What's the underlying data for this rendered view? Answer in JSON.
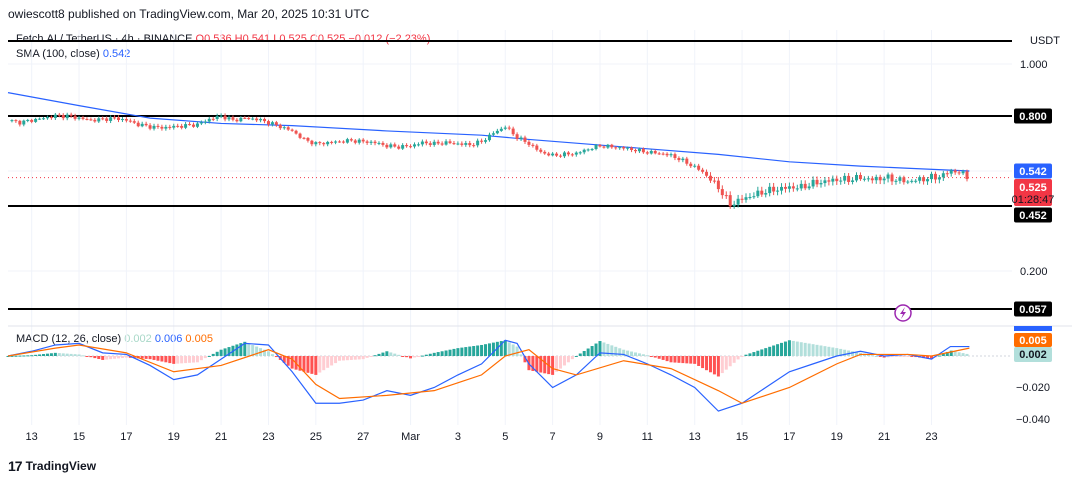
{
  "header": {
    "publisher": "owiescott8 published on TradingView.com, Mar 20, 2025 10:31 UTC",
    "symbol": "Fetch.AI / TetherUS · 4h · BINANCE",
    "ohlc": "O0.536 H0.541 L0.525 C0.525 −0.012 (−2.23%)"
  },
  "sma_legend": {
    "label": "SMA (100, close)",
    "value": "0.542"
  },
  "macd_legend": {
    "label": "MACD (12, 26, close)",
    "hist": "0.002",
    "macd": "0.006",
    "signal": "0.005"
  },
  "footer": {
    "logo": "17",
    "brand": "TradingView"
  },
  "colors": {
    "up": "#26a69a",
    "down": "#ef5350",
    "sma": "#2962ff",
    "macd": "#2962ff",
    "signal": "#ff6d00",
    "level": "#000000"
  },
  "chart_data": [
    {
      "type": "candlestick",
      "title": "Fetch.AI / TetherUS · 4h · BINANCE",
      "currency": "USDT",
      "y_ticks": [
        "1.000",
        "0.200"
      ],
      "x_ticks": [
        "13",
        "15",
        "17",
        "19",
        "21",
        "23",
        "25",
        "27",
        "Mar",
        "3",
        "5",
        "7",
        "9",
        "11",
        "13",
        "15",
        "17",
        "19",
        "21",
        "23"
      ],
      "horizontal_levels": [
        1.04,
        0.8,
        0.452,
        0.057
      ],
      "price_labels": {
        "sma": "0.542",
        "last": "0.525",
        "countdown": "01:28:47",
        "levels": [
          "0.800",
          "0.452",
          "0.057"
        ]
      },
      "close_path": [
        {
          "day": 12.0,
          "close": 0.78
        },
        {
          "day": 12.5,
          "close": 0.77
        },
        {
          "day": 13.0,
          "close": 0.78
        },
        {
          "day": 13.5,
          "close": 0.79
        },
        {
          "day": 14.0,
          "close": 0.8
        },
        {
          "day": 14.5,
          "close": 0.8
        },
        {
          "day": 15.0,
          "close": 0.79
        },
        {
          "day": 15.5,
          "close": 0.78
        },
        {
          "day": 16.0,
          "close": 0.785
        },
        {
          "day": 16.5,
          "close": 0.79
        },
        {
          "day": 17.0,
          "close": 0.78
        },
        {
          "day": 17.5,
          "close": 0.76
        },
        {
          "day": 18.0,
          "close": 0.75
        },
        {
          "day": 18.5,
          "close": 0.745
        },
        {
          "day": 19.0,
          "close": 0.75
        },
        {
          "day": 19.5,
          "close": 0.755
        },
        {
          "day": 20.0,
          "close": 0.76
        },
        {
          "day": 20.5,
          "close": 0.785
        },
        {
          "day": 21.0,
          "close": 0.8
        },
        {
          "day": 21.5,
          "close": 0.78
        },
        {
          "day": 22.0,
          "close": 0.79
        },
        {
          "day": 22.5,
          "close": 0.785
        },
        {
          "day": 23.0,
          "close": 0.77
        },
        {
          "day": 23.5,
          "close": 0.75
        },
        {
          "day": 24.0,
          "close": 0.73
        },
        {
          "day": 24.5,
          "close": 0.69
        },
        {
          "day": 25.0,
          "close": 0.67
        },
        {
          "day": 25.5,
          "close": 0.675
        },
        {
          "day": 26.0,
          "close": 0.68
        },
        {
          "day": 26.5,
          "close": 0.685
        },
        {
          "day": 27.0,
          "close": 0.68
        },
        {
          "day": 27.5,
          "close": 0.675
        },
        {
          "day": 28.0,
          "close": 0.66
        },
        {
          "day": 28.5,
          "close": 0.655
        },
        {
          "day": 29.0,
          "close": 0.66
        },
        {
          "day": 29.5,
          "close": 0.675
        },
        {
          "day": 30.0,
          "close": 0.67
        },
        {
          "day": 30.5,
          "close": 0.675
        },
        {
          "day": 31.0,
          "close": 0.67
        },
        {
          "day": 31.5,
          "close": 0.665
        },
        {
          "day": 32.0,
          "close": 0.68
        },
        {
          "day": 32.5,
          "close": 0.72
        },
        {
          "day": 33.0,
          "close": 0.75
        },
        {
          "day": 33.5,
          "close": 0.7
        },
        {
          "day": 34.0,
          "close": 0.67
        },
        {
          "day": 34.5,
          "close": 0.63
        },
        {
          "day": 35.0,
          "close": 0.615
        },
        {
          "day": 35.5,
          "close": 0.62
        },
        {
          "day": 36.0,
          "close": 0.625
        },
        {
          "day": 36.5,
          "close": 0.645
        },
        {
          "day": 37.0,
          "close": 0.66
        },
        {
          "day": 37.5,
          "close": 0.655
        },
        {
          "day": 38.0,
          "close": 0.65
        },
        {
          "day": 38.5,
          "close": 0.64
        },
        {
          "day": 39.0,
          "close": 0.63
        },
        {
          "day": 39.5,
          "close": 0.625
        },
        {
          "day": 40.0,
          "close": 0.615
        },
        {
          "day": 40.5,
          "close": 0.59
        },
        {
          "day": 41.0,
          "close": 0.56
        },
        {
          "day": 41.5,
          "close": 0.53
        },
        {
          "day": 42.0,
          "close": 0.5
        },
        {
          "day": 42.5,
          "close": 0.455
        },
        {
          "day": 43.0,
          "close": 0.47
        },
        {
          "day": 43.5,
          "close": 0.48
        },
        {
          "day": 44.0,
          "close": 0.49
        },
        {
          "day": 44.5,
          "close": 0.495
        },
        {
          "day": 45.0,
          "close": 0.5
        },
        {
          "day": 45.5,
          "close": 0.5
        },
        {
          "day": 46.0,
          "close": 0.51
        },
        {
          "day": 46.5,
          "close": 0.515
        },
        {
          "day": 47.0,
          "close": 0.52
        },
        {
          "day": 47.5,
          "close": 0.52
        },
        {
          "day": 48.0,
          "close": 0.525
        },
        {
          "day": 48.5,
          "close": 0.52
        },
        {
          "day": 49.0,
          "close": 0.525
        },
        {
          "day": 49.5,
          "close": 0.52
        },
        {
          "day": 50.0,
          "close": 0.515
        },
        {
          "day": 50.5,
          "close": 0.52
        },
        {
          "day": 51.0,
          "close": 0.525
        },
        {
          "day": 51.5,
          "close": 0.53
        },
        {
          "day": 51.8,
          "close": 0.545
        },
        {
          "day": 52.0,
          "close": 0.54
        },
        {
          "day": 52.3,
          "close": 0.535
        },
        {
          "day": 52.6,
          "close": 0.525
        }
      ],
      "sma_path": [
        {
          "day": 12.0,
          "value": 0.89
        },
        {
          "day": 15.0,
          "value": 0.84
        },
        {
          "day": 18.0,
          "value": 0.79
        },
        {
          "day": 21.0,
          "value": 0.765
        },
        {
          "day": 24.0,
          "value": 0.755
        },
        {
          "day": 28.0,
          "value": 0.73
        },
        {
          "day": 32.0,
          "value": 0.71
        },
        {
          "day": 34.0,
          "value": 0.69
        },
        {
          "day": 38.0,
          "value": 0.655
        },
        {
          "day": 42.0,
          "value": 0.62
        },
        {
          "day": 45.0,
          "value": 0.585
        },
        {
          "day": 48.0,
          "value": 0.565
        },
        {
          "day": 50.0,
          "value": 0.555
        },
        {
          "day": 52.6,
          "value": 0.542
        }
      ]
    },
    {
      "type": "macd",
      "title": "MACD (12, 26, close)",
      "y_ticks": [
        "−0.020",
        "−0.040"
      ],
      "price_labels": {
        "macd": "0.006",
        "signal": "0.005",
        "hist": "0.002"
      },
      "macd_path": [
        {
          "day": 12,
          "v": 0.0
        },
        {
          "day": 13,
          "v": 0.003
        },
        {
          "day": 14,
          "v": 0.007
        },
        {
          "day": 15,
          "v": 0.008
        },
        {
          "day": 16,
          "v": 0.002
        },
        {
          "day": 17,
          "v": 0.001
        },
        {
          "day": 18,
          "v": -0.006
        },
        {
          "day": 19,
          "v": -0.015
        },
        {
          "day": 20,
          "v": -0.012
        },
        {
          "day": 21,
          "v": -0.002
        },
        {
          "day": 22,
          "v": 0.008
        },
        {
          "day": 23,
          "v": 0.007
        },
        {
          "day": 24,
          "v": -0.01
        },
        {
          "day": 25,
          "v": -0.03
        },
        {
          "day": 26,
          "v": -0.03
        },
        {
          "day": 27,
          "v": -0.028
        },
        {
          "day": 28,
          "v": -0.022
        },
        {
          "day": 29,
          "v": -0.025
        },
        {
          "day": 30,
          "v": -0.02
        },
        {
          "day": 31,
          "v": -0.012
        },
        {
          "day": 32,
          "v": -0.005
        },
        {
          "day": 33,
          "v": 0.01
        },
        {
          "day": 33.5,
          "v": 0.008
        },
        {
          "day": 34,
          "v": -0.005
        },
        {
          "day": 35,
          "v": -0.02
        },
        {
          "day": 36,
          "v": -0.012
        },
        {
          "day": 37,
          "v": 0.002
        },
        {
          "day": 38,
          "v": 0.001
        },
        {
          "day": 39,
          "v": -0.005
        },
        {
          "day": 40,
          "v": -0.012
        },
        {
          "day": 41,
          "v": -0.02
        },
        {
          "day": 42,
          "v": -0.035
        },
        {
          "day": 43,
          "v": -0.03
        },
        {
          "day": 44,
          "v": -0.02
        },
        {
          "day": 45,
          "v": -0.01
        },
        {
          "day": 46,
          "v": -0.005
        },
        {
          "day": 47,
          "v": 0.0
        },
        {
          "day": 48,
          "v": 0.003
        },
        {
          "day": 49,
          "v": 0.0
        },
        {
          "day": 50,
          "v": 0.001
        },
        {
          "day": 51,
          "v": -0.002
        },
        {
          "day": 51.8,
          "v": 0.006
        },
        {
          "day": 52.6,
          "v": 0.006
        }
      ],
      "signal_path": [
        {
          "day": 12,
          "v": 0.0
        },
        {
          "day": 14,
          "v": 0.005
        },
        {
          "day": 15,
          "v": 0.007
        },
        {
          "day": 17,
          "v": 0.002
        },
        {
          "day": 19,
          "v": -0.01
        },
        {
          "day": 21,
          "v": -0.006
        },
        {
          "day": 23,
          "v": 0.004
        },
        {
          "day": 24,
          "v": -0.002
        },
        {
          "day": 25,
          "v": -0.018
        },
        {
          "day": 26,
          "v": -0.027
        },
        {
          "day": 28,
          "v": -0.025
        },
        {
          "day": 30,
          "v": -0.022
        },
        {
          "day": 32,
          "v": -0.012
        },
        {
          "day": 33,
          "v": 0.0
        },
        {
          "day": 34,
          "v": 0.004
        },
        {
          "day": 35,
          "v": -0.008
        },
        {
          "day": 36,
          "v": -0.012
        },
        {
          "day": 38,
          "v": -0.003
        },
        {
          "day": 40,
          "v": -0.008
        },
        {
          "day": 42,
          "v": -0.022
        },
        {
          "day": 43,
          "v": -0.03
        },
        {
          "day": 45,
          "v": -0.02
        },
        {
          "day": 47,
          "v": -0.005
        },
        {
          "day": 48,
          "v": 0.001
        },
        {
          "day": 50,
          "v": 0.001
        },
        {
          "day": 51,
          "v": 0.0
        },
        {
          "day": 52.6,
          "v": 0.005
        }
      ]
    }
  ]
}
